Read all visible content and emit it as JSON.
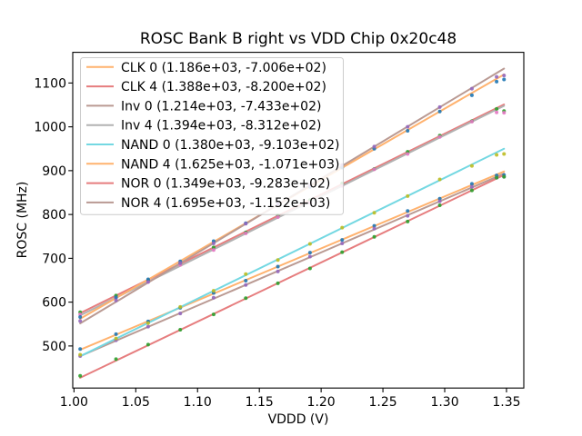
{
  "figure": {
    "title": "ROSC Bank B right vs VDD Chip 0x20c48",
    "xlabel": "VDDD (V)",
    "ylabel": "ROSC (MHz)"
  },
  "chart_data": {
    "type": "scatter",
    "title": "ROSC Bank B right vs VDD Chip 0x20c48",
    "xlabel": "VDDD (V)",
    "ylabel": "ROSC (MHz)",
    "xlim": [
      0.999,
      1.364
    ],
    "ylim": [
      404,
      1170
    ],
    "xticks": [
      1.0,
      1.05,
      1.1,
      1.15,
      1.2,
      1.25,
      1.3,
      1.35
    ],
    "xtick_labels": [
      "1.00",
      "1.05",
      "1.10",
      "1.15",
      "1.20",
      "1.25",
      "1.30",
      "1.35"
    ],
    "yticks": [
      500,
      600,
      700,
      800,
      900,
      1000,
      1100
    ],
    "ytick_labels": [
      "500",
      "600",
      "700",
      "800",
      "900",
      "1000",
      "1100"
    ],
    "grid": false,
    "legend_position": "upper left",
    "x": [
      1.005,
      1.034,
      1.06,
      1.086,
      1.113,
      1.139,
      1.165,
      1.191,
      1.217,
      1.243,
      1.27,
      1.296,
      1.322,
      1.342,
      1.348
    ],
    "series": [
      {
        "name": "CLK-0",
        "legend_label": "CLK 0 (1.186e+03, -7.006e+02)",
        "fit": {
          "slope": 1186,
          "intercept": -700.6
        },
        "line_color": "#ffb26e",
        "marker_color": "#1f77b4",
        "y": [
          493,
          527,
          556,
          587,
          621,
          649,
          681,
          713,
          742,
          774,
          808,
          836,
          870,
          889,
          890
        ]
      },
      {
        "name": "CLK-4",
        "legend_label": "CLK 4 (1.388e+03, -8.200e+02)",
        "fit": {
          "slope": 1388,
          "intercept": -820.0
        },
        "line_color": "#e67d7e",
        "marker_color": "#2ca02c",
        "y": [
          577,
          615,
          650,
          688,
          725,
          759,
          798,
          833,
          871,
          904,
          943,
          980,
          1013,
          1041,
          1036
        ]
      },
      {
        "name": "Inv-0",
        "legend_label": "Inv 0 (1.214e+03, -7.433e+02)",
        "fit": {
          "slope": 1214,
          "intercept": -743.3
        },
        "line_color": "#ba9a93",
        "marker_color": "#9467bd",
        "y": [
          477,
          513,
          544,
          574,
          610,
          639,
          670,
          704,
          734,
          768,
          797,
          830,
          863,
          884,
          886
        ]
      },
      {
        "name": "Inv-4",
        "legend_label": "Inv 4 (1.394e+03, -8.312e+02)",
        "fit": {
          "slope": 1394,
          "intercept": -831.2
        },
        "line_color": "#b2b2b2",
        "marker_color": "#e377c2",
        "y": [
          572,
          609,
          646,
          685,
          719,
          757,
          794,
          827,
          865,
          903,
          938,
          977,
          1012,
          1033,
          1032
        ]
      },
      {
        "name": "NAND-0",
        "legend_label": "NAND 0 (1.380e+03, -9.103e+02)",
        "fit": {
          "slope": 1380,
          "intercept": -910.3
        },
        "line_color": "#74d8e2",
        "marker_color": "#bcbd22",
        "y": [
          480,
          517,
          552,
          589,
          626,
          664,
          696,
          733,
          770,
          804,
          842,
          880,
          911,
          936,
          938
        ]
      },
      {
        "name": "NAND-4",
        "legend_label": "NAND 4 (1.625e+03, -1.071e+03)",
        "fit": {
          "slope": 1625,
          "intercept": -1071.0
        },
        "line_color": "#ffb26e",
        "marker_color": "#1f77b4",
        "y": [
          566,
          611,
          652,
          693,
          739,
          780,
          824,
          863,
          907,
          950,
          991,
          1035,
          1072,
          1103,
          1108
        ]
      },
      {
        "name": "NOR-0",
        "legend_label": "NOR 0 (1.349e+03, -9.283e+02)",
        "fit": {
          "slope": 1349,
          "intercept": -928.3
        },
        "line_color": "#e67d7e",
        "marker_color": "#2ca02c",
        "y": [
          432,
          470,
          503,
          537,
          572,
          609,
          643,
          677,
          714,
          749,
          784,
          821,
          855,
          884,
          886
        ]
      },
      {
        "name": "NOR-4",
        "legend_label": "NOR 4 (1.695e+03, -1.152e+03)",
        "fit": {
          "slope": 1695,
          "intercept": -1152.0
        },
        "line_color": "#ba9a93",
        "marker_color": "#9467bd",
        "y": [
          557,
          604,
          646,
          689,
          734,
          779,
          824,
          866,
          913,
          955,
          1000,
          1045,
          1087,
          1114,
          1117
        ]
      }
    ]
  }
}
